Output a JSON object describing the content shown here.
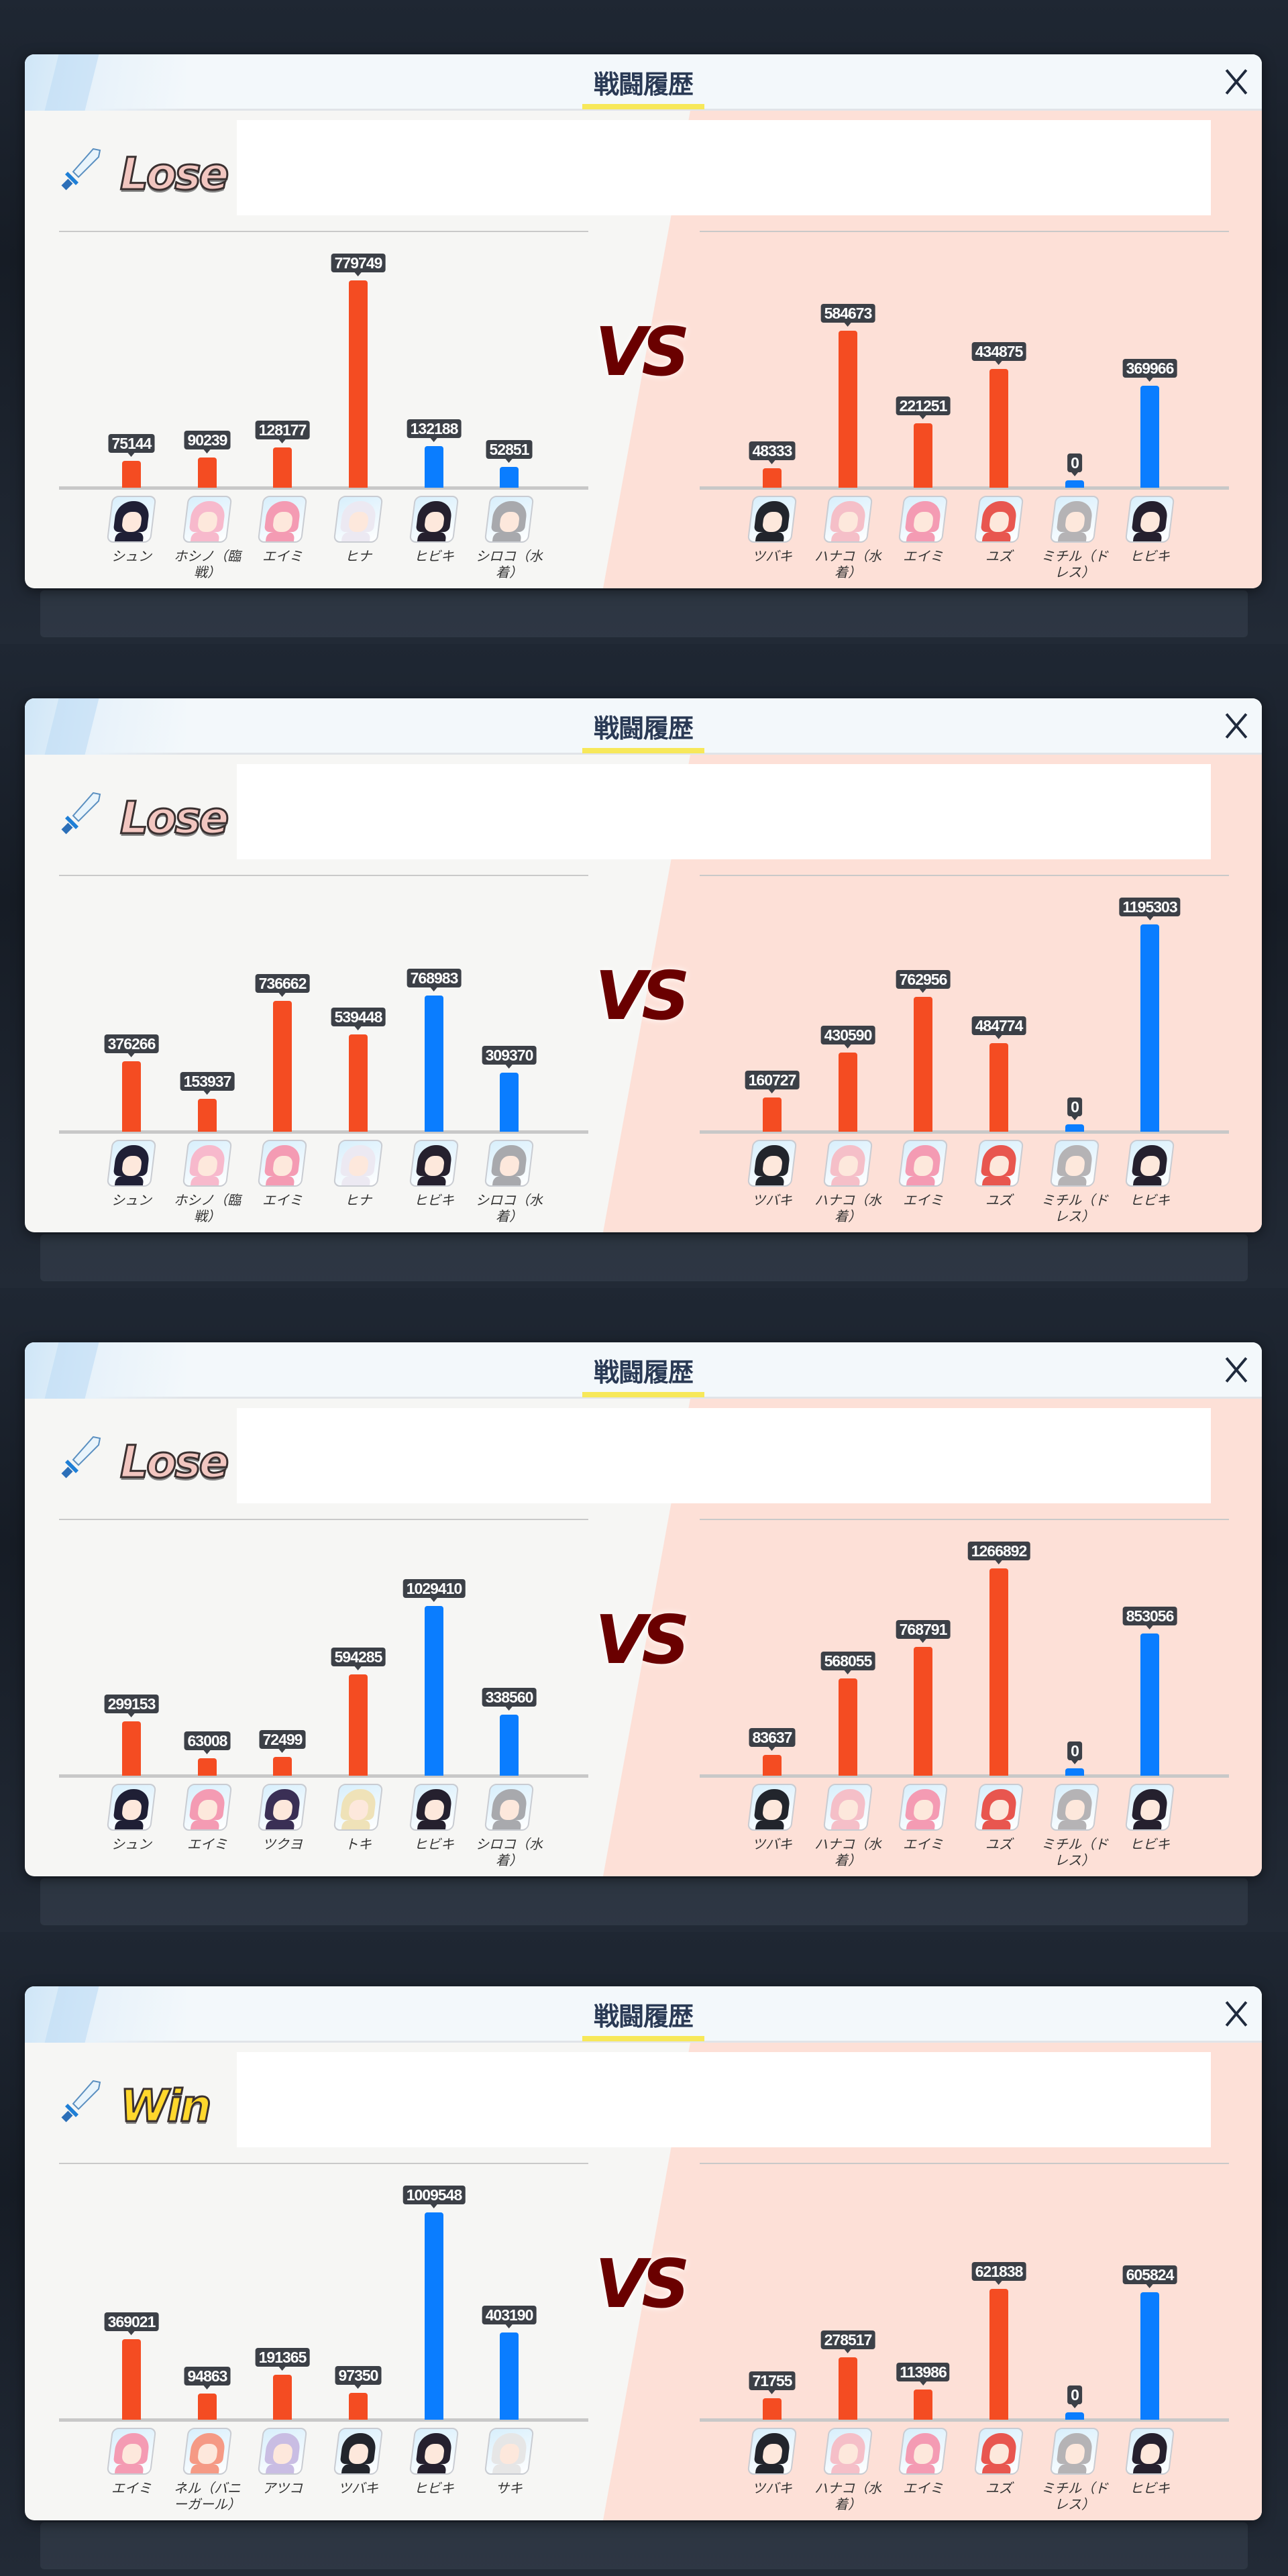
{
  "dialog_title": "戦闘履歴",
  "vs_label": "VS",
  "colors": {
    "striker": "#f44c22",
    "special": "#0a7dff",
    "vs": "#6a0000",
    "accent_underline": "#f7e85a"
  },
  "battles": [
    {
      "result": "Lose",
      "left": [
        {
          "name": "シュン",
          "value": 75144,
          "role": "striker",
          "avatar_color": "#1f1f35"
        },
        {
          "name": "ホシノ（臨戦）",
          "value": 90239,
          "role": "striker",
          "avatar_color": "#f7b9cc"
        },
        {
          "name": "エイミ",
          "value": 128177,
          "role": "striker",
          "avatar_color": "#f49bb3"
        },
        {
          "name": "ヒナ",
          "value": 779749,
          "role": "striker",
          "avatar_color": "#ece9f2"
        },
        {
          "name": "ヒビキ",
          "value": 132188,
          "role": "special",
          "avatar_color": "#25202e"
        },
        {
          "name": "シロコ（水着）",
          "value": 52851,
          "role": "special",
          "avatar_color": "#a8a9ad"
        }
      ],
      "right": [
        {
          "name": "ツバキ",
          "value": 48333,
          "role": "striker",
          "avatar_color": "#22252c"
        },
        {
          "name": "ハナコ（水着）",
          "value": 584673,
          "role": "striker",
          "avatar_color": "#f5bfc8"
        },
        {
          "name": "エイミ",
          "value": 221251,
          "role": "striker",
          "avatar_color": "#f49bb3"
        },
        {
          "name": "ユズ",
          "value": 434875,
          "role": "striker",
          "avatar_color": "#e8564f"
        },
        {
          "name": "ミチル（ドレス）",
          "value": 0,
          "role": "special",
          "avatar_color": "#b5b3b5"
        },
        {
          "name": "ヒビキ",
          "value": 369966,
          "role": "special",
          "avatar_color": "#25202e"
        }
      ]
    },
    {
      "result": "Lose",
      "left": [
        {
          "name": "シュン",
          "value": 376266,
          "role": "striker",
          "avatar_color": "#1f1f35"
        },
        {
          "name": "ホシノ（臨戦）",
          "value": 153937,
          "role": "striker",
          "avatar_color": "#f7b9cc"
        },
        {
          "name": "エイミ",
          "value": 736662,
          "role": "striker",
          "avatar_color": "#f49bb3"
        },
        {
          "name": "ヒナ",
          "value": 539448,
          "role": "striker",
          "avatar_color": "#ece9f2"
        },
        {
          "name": "ヒビキ",
          "value": 768983,
          "role": "special",
          "avatar_color": "#25202e"
        },
        {
          "name": "シロコ（水着）",
          "value": 309370,
          "role": "special",
          "avatar_color": "#a8a9ad"
        }
      ],
      "right": [
        {
          "name": "ツバキ",
          "value": 160727,
          "role": "striker",
          "avatar_color": "#22252c"
        },
        {
          "name": "ハナコ（水着）",
          "value": 430590,
          "role": "striker",
          "avatar_color": "#f5bfc8"
        },
        {
          "name": "エイミ",
          "value": 762956,
          "role": "striker",
          "avatar_color": "#f49bb3"
        },
        {
          "name": "ユズ",
          "value": 484774,
          "role": "striker",
          "avatar_color": "#e8564f"
        },
        {
          "name": "ミチル（ドレス）",
          "value": 0,
          "role": "special",
          "avatar_color": "#b5b3b5"
        },
        {
          "name": "ヒビキ",
          "value": 1195303,
          "role": "special",
          "avatar_color": "#25202e"
        }
      ]
    },
    {
      "result": "Lose",
      "left": [
        {
          "name": "シュン",
          "value": 299153,
          "role": "striker",
          "avatar_color": "#1f1f35"
        },
        {
          "name": "エイミ",
          "value": 63008,
          "role": "striker",
          "avatar_color": "#f49bb3"
        },
        {
          "name": "ツクヨ",
          "value": 72499,
          "role": "striker",
          "avatar_color": "#3a2f55"
        },
        {
          "name": "トキ",
          "value": 594285,
          "role": "striker",
          "avatar_color": "#efe2b8"
        },
        {
          "name": "ヒビキ",
          "value": 1029410,
          "role": "special",
          "avatar_color": "#25202e"
        },
        {
          "name": "シロコ（水着）",
          "value": 338560,
          "role": "special",
          "avatar_color": "#a8a9ad"
        }
      ],
      "right": [
        {
          "name": "ツバキ",
          "value": 83637,
          "role": "striker",
          "avatar_color": "#22252c"
        },
        {
          "name": "ハナコ（水着）",
          "value": 568055,
          "role": "striker",
          "avatar_color": "#f5bfc8"
        },
        {
          "name": "エイミ",
          "value": 768791,
          "role": "striker",
          "avatar_color": "#f49bb3"
        },
        {
          "name": "ユズ",
          "value": 1266892,
          "role": "striker",
          "avatar_color": "#e8564f"
        },
        {
          "name": "ミチル（ドレス）",
          "value": 0,
          "role": "special",
          "avatar_color": "#b5b3b5"
        },
        {
          "name": "ヒビキ",
          "value": 853056,
          "role": "special",
          "avatar_color": "#25202e"
        }
      ]
    },
    {
      "result": "Win",
      "left": [
        {
          "name": "エイミ",
          "value": 369021,
          "role": "striker",
          "avatar_color": "#f49bb3"
        },
        {
          "name": "ネル（バニーガール）",
          "value": 94863,
          "role": "striker",
          "avatar_color": "#f59a85"
        },
        {
          "name": "アツコ",
          "value": 191365,
          "role": "striker",
          "avatar_color": "#c9bde3"
        },
        {
          "name": "ツバキ",
          "value": 97350,
          "role": "striker",
          "avatar_color": "#22252c"
        },
        {
          "name": "ヒビキ",
          "value": 1009548,
          "role": "special",
          "avatar_color": "#25202e"
        },
        {
          "name": "サキ",
          "value": 403190,
          "role": "special",
          "avatar_color": "#e6e6e6"
        }
      ],
      "right": [
        {
          "name": "ツバキ",
          "value": 71755,
          "role": "striker",
          "avatar_color": "#22252c"
        },
        {
          "name": "ハナコ（水着）",
          "value": 278517,
          "role": "striker",
          "avatar_color": "#f5bfc8"
        },
        {
          "name": "エイミ",
          "value": 113986,
          "role": "striker",
          "avatar_color": "#f49bb3"
        },
        {
          "name": "ユズ",
          "value": 621838,
          "role": "striker",
          "avatar_color": "#e8564f"
        },
        {
          "name": "ミチル（ドレス）",
          "value": 0,
          "role": "special",
          "avatar_color": "#b5b3b5"
        },
        {
          "name": "ヒビキ",
          "value": 605824,
          "role": "special",
          "avatar_color": "#25202e"
        }
      ]
    }
  ]
}
